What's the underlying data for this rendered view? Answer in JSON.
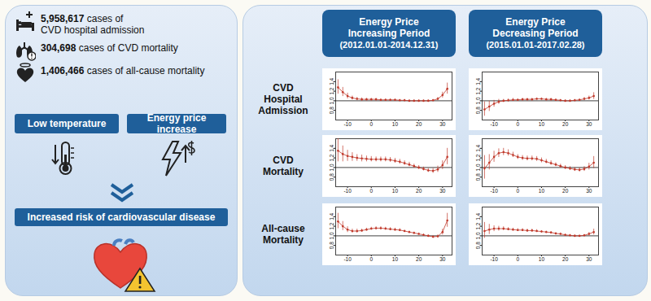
{
  "left_panel": {
    "stats": [
      {
        "count": "5,958,617",
        "text_lines": [
          "cases of",
          "CVD hospital admission"
        ]
      },
      {
        "count": "304,698",
        "text_lines": [
          "cases of CVD mortality"
        ]
      },
      {
        "count": "1,406,466",
        "text_lines": [
          "cases of all-cause mortality"
        ]
      }
    ],
    "factors": [
      "Low temperature",
      "Energy price increase"
    ],
    "outcome": "Increased risk of cardiovascular disease"
  },
  "right_panel": {
    "columns": [
      {
        "title_lines": [
          "Energy Price",
          "Increasing Period"
        ],
        "period": "(2012.01.01-2014.12.31)"
      },
      {
        "title_lines": [
          "Energy Price",
          "Decreasing Period"
        ],
        "period": "(2015.01.01-2017.02.28)"
      }
    ],
    "rows": [
      [
        "CVD",
        "Hospital",
        "Admission"
      ],
      [
        "CVD",
        "Mortality"
      ],
      [
        "All-cause",
        "Mortality"
      ]
    ]
  },
  "chart_data": [
    {
      "type": "line",
      "marker": "dot",
      "color": "#c0392b",
      "x": [
        -14,
        -12,
        -10,
        -8,
        -6,
        -4,
        -2,
        0,
        2,
        4,
        6,
        8,
        10,
        12,
        14,
        16,
        18,
        20,
        22,
        24,
        26,
        28,
        30,
        32
      ],
      "values": [
        1.28,
        1.18,
        1.1,
        1.06,
        1.04,
        1.03,
        1.03,
        1.03,
        1.03,
        1.02,
        1.02,
        1.02,
        1.02,
        1.01,
        1.01,
        1.0,
        1.0,
        1.0,
        1.0,
        1.0,
        1.01,
        1.04,
        1.12,
        1.25
      ],
      "lower": [
        1.14,
        1.09,
        1.04,
        1.02,
        1.01,
        1.0,
        1.01,
        1.01,
        1.01,
        1.0,
        1.0,
        1.0,
        1.0,
        0.99,
        0.99,
        0.98,
        0.98,
        0.98,
        0.98,
        0.98,
        0.99,
        1.01,
        1.06,
        1.14
      ],
      "upper": [
        1.44,
        1.28,
        1.16,
        1.1,
        1.07,
        1.06,
        1.05,
        1.05,
        1.05,
        1.04,
        1.04,
        1.04,
        1.04,
        1.03,
        1.03,
        1.02,
        1.02,
        1.02,
        1.02,
        1.02,
        1.03,
        1.07,
        1.18,
        1.37
      ],
      "reference_line": 1,
      "xlim": [
        -15,
        34
      ],
      "xticks": [
        -10,
        0,
        10,
        20,
        30
      ],
      "ylim": [
        0.6,
        1.6
      ],
      "yticks": [
        0.8,
        {
          "value": 1,
          "label": "1.0"
        },
        1.2,
        1.4
      ]
    },
    {
      "type": "line",
      "marker": "dot",
      "color": "#c0392b",
      "x": [
        -14,
        -12,
        -10,
        -8,
        -6,
        -4,
        -2,
        0,
        2,
        4,
        6,
        8,
        10,
        12,
        14,
        16,
        18,
        20,
        22,
        24,
        26,
        28,
        30,
        32
      ],
      "values": [
        0.82,
        0.88,
        0.94,
        0.98,
        1.0,
        1.01,
        1.02,
        1.02,
        1.03,
        1.03,
        1.03,
        1.04,
        1.04,
        1.03,
        1.03,
        1.02,
        1.01,
        1.0,
        1.0,
        1.01,
        1.02,
        1.04,
        1.06,
        1.1
      ],
      "lower": [
        0.68,
        0.78,
        0.87,
        0.93,
        0.97,
        0.98,
        0.99,
        1.0,
        1.01,
        1.01,
        1.01,
        1.02,
        1.02,
        1.01,
        1.01,
        1.0,
        0.99,
        0.98,
        0.98,
        0.99,
        1.0,
        1.01,
        1.02,
        1.03
      ],
      "upper": [
        0.98,
        0.99,
        1.01,
        1.03,
        1.03,
        1.04,
        1.05,
        1.04,
        1.05,
        1.05,
        1.05,
        1.06,
        1.06,
        1.05,
        1.05,
        1.04,
        1.03,
        1.02,
        1.02,
        1.03,
        1.04,
        1.07,
        1.1,
        1.17
      ],
      "reference_line": 1,
      "xlim": [
        -15,
        34
      ],
      "xticks": [
        -10,
        0,
        10,
        20,
        30
      ],
      "ylim": [
        0.6,
        1.6
      ],
      "yticks": [
        0.8,
        {
          "value": 1,
          "label": "1.0"
        },
        1.2,
        1.4
      ]
    },
    {
      "type": "line",
      "marker": "dot",
      "color": "#c0392b",
      "x": [
        -14,
        -12,
        -10,
        -8,
        -6,
        -4,
        -2,
        0,
        2,
        4,
        6,
        8,
        10,
        12,
        14,
        16,
        18,
        20,
        22,
        24,
        26,
        28,
        30,
        32
      ],
      "values": [
        1.35,
        1.28,
        1.24,
        1.22,
        1.2,
        1.19,
        1.18,
        1.17,
        1.17,
        1.17,
        1.17,
        1.16,
        1.14,
        1.12,
        1.09,
        1.06,
        1.03,
        1.0,
        0.97,
        0.94,
        0.93,
        0.96,
        1.05,
        1.22
      ],
      "lower": [
        1.12,
        1.12,
        1.13,
        1.13,
        1.13,
        1.12,
        1.12,
        1.12,
        1.12,
        1.12,
        1.12,
        1.11,
        1.09,
        1.07,
        1.05,
        1.02,
        0.99,
        0.96,
        0.93,
        0.9,
        0.88,
        0.9,
        0.96,
        1.06
      ],
      "upper": [
        1.6,
        1.45,
        1.36,
        1.31,
        1.27,
        1.26,
        1.24,
        1.23,
        1.22,
        1.22,
        1.22,
        1.21,
        1.19,
        1.17,
        1.14,
        1.11,
        1.07,
        1.04,
        1.01,
        0.98,
        0.98,
        1.03,
        1.14,
        1.4
      ],
      "reference_line": 1,
      "xlim": [
        -15,
        34
      ],
      "xticks": [
        -10,
        0,
        10,
        20,
        30
      ],
      "ylim": [
        0.6,
        1.6
      ],
      "yticks": [
        0.8,
        {
          "value": 1,
          "label": "1.0"
        },
        1.2,
        1.4
      ]
    },
    {
      "type": "line",
      "marker": "dot",
      "color": "#c0392b",
      "x": [
        -14,
        -12,
        -10,
        -8,
        -6,
        -4,
        -2,
        0,
        2,
        4,
        6,
        8,
        10,
        12,
        14,
        16,
        18,
        20,
        22,
        24,
        26,
        28,
        30,
        32
      ],
      "values": [
        0.98,
        1.1,
        1.22,
        1.3,
        1.32,
        1.3,
        1.26,
        1.22,
        1.2,
        1.19,
        1.19,
        1.18,
        1.15,
        1.12,
        1.09,
        1.06,
        1.03,
        1.0,
        0.98,
        0.96,
        0.95,
        0.97,
        1.02,
        1.1
      ],
      "lower": [
        0.76,
        0.95,
        1.11,
        1.21,
        1.25,
        1.24,
        1.21,
        1.17,
        1.15,
        1.14,
        1.14,
        1.13,
        1.1,
        1.08,
        1.05,
        1.02,
        0.99,
        0.96,
        0.94,
        0.92,
        0.91,
        0.92,
        0.95,
        0.98
      ],
      "upper": [
        1.25,
        1.27,
        1.34,
        1.39,
        1.4,
        1.37,
        1.32,
        1.27,
        1.25,
        1.24,
        1.24,
        1.23,
        1.2,
        1.17,
        1.14,
        1.1,
        1.07,
        1.04,
        1.02,
        1.0,
        0.99,
        1.02,
        1.09,
        1.23
      ],
      "reference_line": 1,
      "xlim": [
        -15,
        34
      ],
      "xticks": [
        -10,
        0,
        10,
        20,
        30
      ],
      "ylim": [
        0.6,
        1.6
      ],
      "yticks": [
        0.8,
        {
          "value": 1,
          "label": "1.0"
        },
        1.2,
        1.4
      ]
    },
    {
      "type": "line",
      "marker": "dot",
      "color": "#c0392b",
      "x": [
        -14,
        -12,
        -10,
        -8,
        -6,
        -4,
        -2,
        0,
        2,
        4,
        6,
        8,
        10,
        12,
        14,
        16,
        18,
        20,
        22,
        24,
        26,
        28,
        30,
        32
      ],
      "values": [
        1.3,
        1.2,
        1.13,
        1.1,
        1.1,
        1.11,
        1.13,
        1.15,
        1.16,
        1.16,
        1.15,
        1.14,
        1.13,
        1.12,
        1.1,
        1.08,
        1.06,
        1.04,
        1.02,
        1.0,
        0.98,
        0.99,
        1.08,
        1.32
      ],
      "lower": [
        1.15,
        1.11,
        1.07,
        1.06,
        1.06,
        1.08,
        1.1,
        1.12,
        1.13,
        1.13,
        1.12,
        1.11,
        1.1,
        1.09,
        1.08,
        1.06,
        1.04,
        1.02,
        1.0,
        0.98,
        0.96,
        0.96,
        1.02,
        1.18
      ],
      "upper": [
        1.47,
        1.3,
        1.19,
        1.14,
        1.14,
        1.14,
        1.16,
        1.18,
        1.19,
        1.19,
        1.18,
        1.17,
        1.16,
        1.15,
        1.12,
        1.1,
        1.08,
        1.06,
        1.04,
        1.02,
        1.0,
        1.02,
        1.14,
        1.47
      ],
      "reference_line": 1,
      "xlim": [
        -15,
        34
      ],
      "xticks": [
        -10,
        0,
        10,
        20,
        30
      ],
      "ylim": [
        0.6,
        1.6
      ],
      "yticks": [
        0.8,
        {
          "value": 1,
          "label": "1.0"
        },
        1.2,
        1.4
      ]
    },
    {
      "type": "line",
      "marker": "dot",
      "color": "#c0392b",
      "x": [
        -14,
        -12,
        -10,
        -8,
        -6,
        -4,
        -2,
        0,
        2,
        4,
        6,
        8,
        10,
        12,
        14,
        16,
        18,
        20,
        22,
        24,
        26,
        28,
        30,
        32
      ],
      "values": [
        1.1,
        1.13,
        1.15,
        1.15,
        1.15,
        1.14,
        1.13,
        1.12,
        1.12,
        1.11,
        1.11,
        1.1,
        1.09,
        1.08,
        1.07,
        1.05,
        1.04,
        1.02,
        1.01,
        1.0,
        1.0,
        1.01,
        1.04,
        1.08
      ],
      "lower": [
        0.95,
        1.03,
        1.09,
        1.1,
        1.11,
        1.11,
        1.1,
        1.09,
        1.09,
        1.09,
        1.09,
        1.08,
        1.07,
        1.06,
        1.05,
        1.04,
        1.02,
        1.01,
        1.0,
        0.99,
        0.98,
        0.99,
        1.0,
        1.02
      ],
      "upper": [
        1.28,
        1.24,
        1.21,
        1.2,
        1.19,
        1.17,
        1.16,
        1.15,
        1.15,
        1.14,
        1.14,
        1.13,
        1.11,
        1.1,
        1.09,
        1.07,
        1.06,
        1.04,
        1.03,
        1.02,
        1.01,
        1.03,
        1.07,
        1.14
      ],
      "reference_line": 1,
      "xlim": [
        -15,
        34
      ],
      "xticks": [
        -10,
        0,
        10,
        20,
        30
      ],
      "ylim": [
        0.6,
        1.6
      ],
      "yticks": [
        0.8,
        {
          "value": 1,
          "label": "1.0"
        },
        1.2,
        1.4
      ]
    }
  ]
}
